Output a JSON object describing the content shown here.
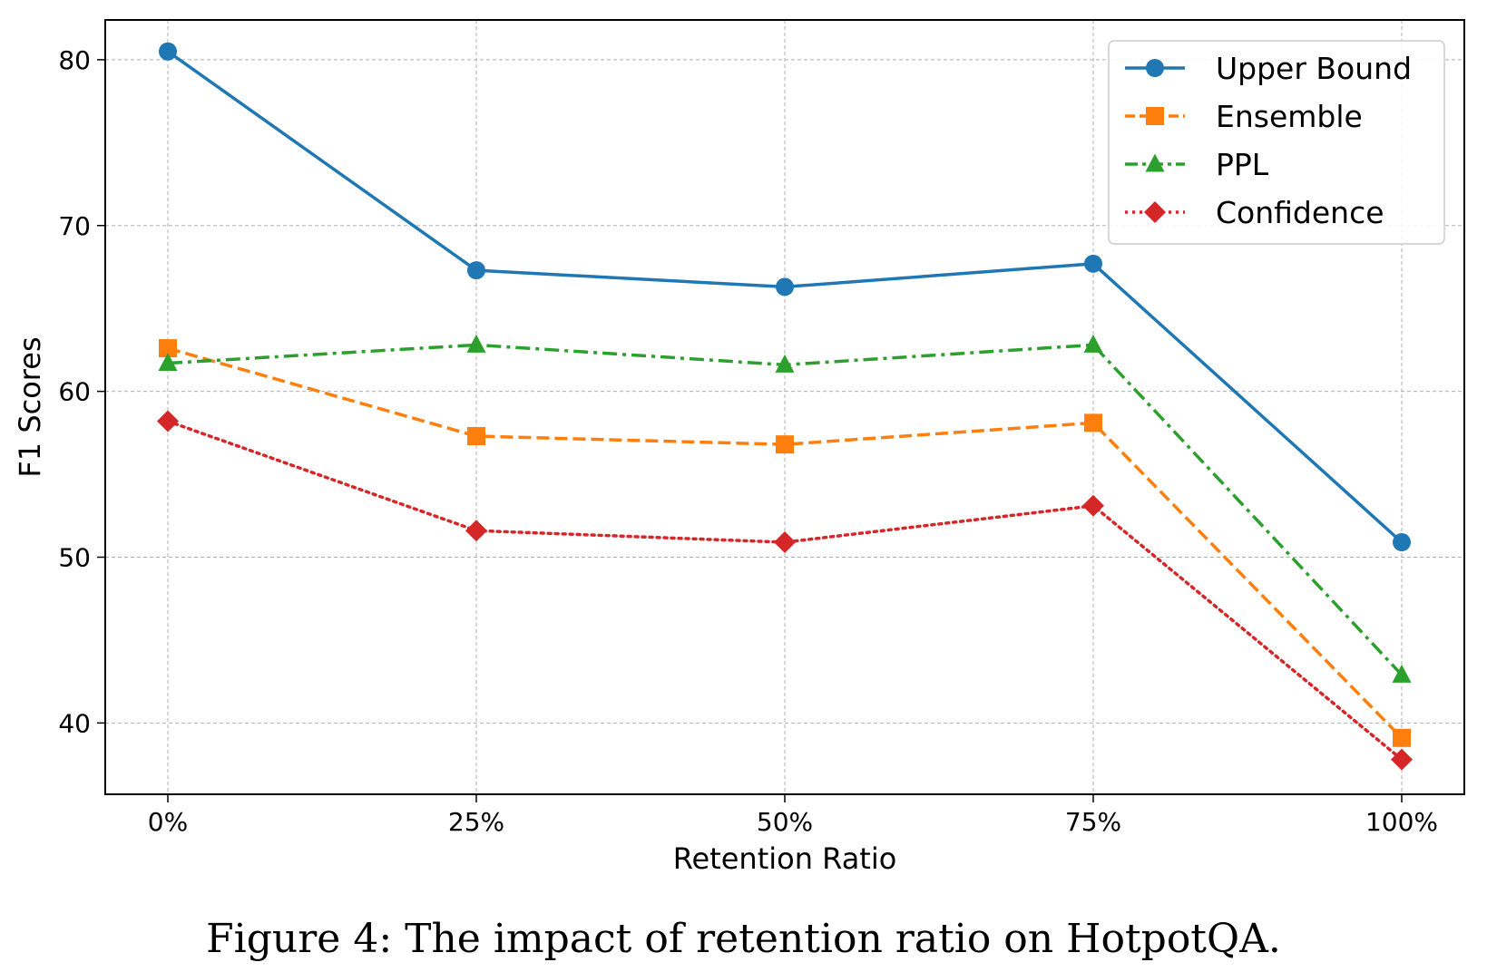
{
  "caption": "Figure 4: The impact of retention ratio on HotpotQA.",
  "chart_data": {
    "type": "line",
    "categories": [
      "0%",
      "25%",
      "50%",
      "75%",
      "100%"
    ],
    "xlabel": "Retention Ratio",
    "ylabel": "F1 Scores",
    "ylim": [
      35.7,
      82.4
    ],
    "yticks": [
      40,
      50,
      60,
      70,
      80
    ],
    "grid": true,
    "legend_position": "top-right",
    "series": [
      {
        "name": "Upper Bound",
        "values": [
          80.5,
          67.3,
          66.3,
          67.7,
          50.9
        ],
        "color": "#1f77b4",
        "marker": "circle",
        "line_style": "solid"
      },
      {
        "name": "Ensemble",
        "values": [
          62.6,
          57.3,
          56.8,
          58.1,
          39.1
        ],
        "color": "#ff7f0e",
        "marker": "square",
        "line_style": "dashed"
      },
      {
        "name": "PPL",
        "values": [
          61.7,
          62.8,
          61.6,
          62.8,
          42.9
        ],
        "color": "#2ca02c",
        "marker": "triangle",
        "line_style": "dashdot"
      },
      {
        "name": "Confidence",
        "values": [
          58.2,
          51.6,
          50.9,
          53.1,
          37.8
        ],
        "color": "#d62728",
        "marker": "diamond",
        "line_style": "dotted"
      }
    ]
  }
}
